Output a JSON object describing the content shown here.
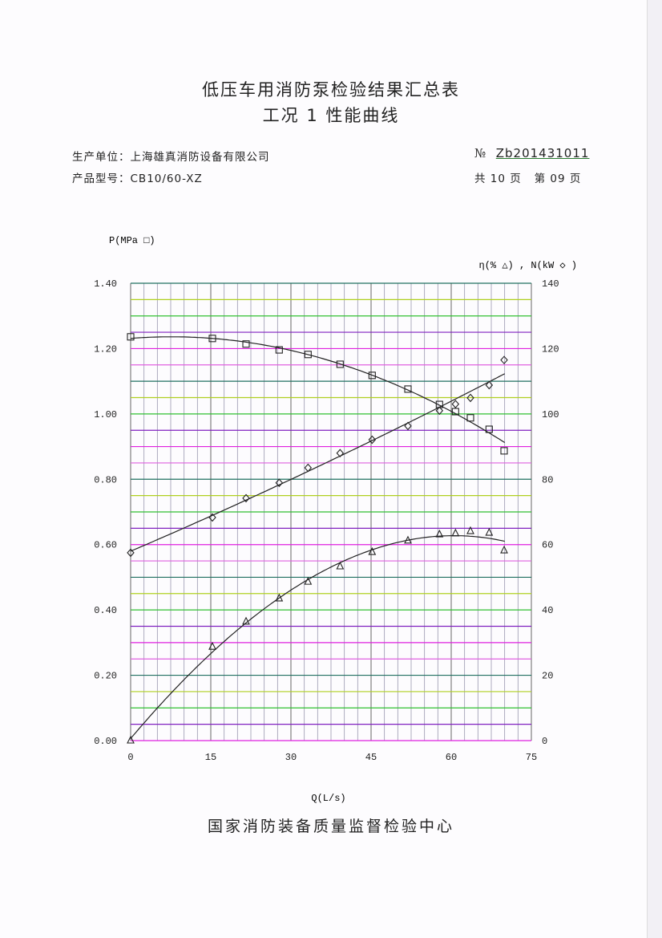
{
  "header": {
    "title": "低压车用消防泵检验结果汇总表",
    "subtitle": "工况 1 性能曲线",
    "manufacturer_label": "生产单位：",
    "manufacturer": "上海雄真消防设备有限公司",
    "model_label": "产品型号：",
    "model": "CB10/60-XZ",
    "no_symbol": "№",
    "doc_no": "Zb201431011",
    "total_pages": "共 10 页",
    "current_page": "第 09 页"
  },
  "footer": {
    "org": "国家消防装备质量监督检验中心"
  },
  "chart_data": {
    "type": "scatter",
    "xlabel": "Q(L/s)",
    "ylabel_left": "P(MPa □)",
    "ylabel_right": "η(% △) , N(kW ◇ )",
    "xlim": [
      0,
      75
    ],
    "ylim_left": [
      0,
      1.4
    ],
    "ylim_right": [
      0,
      140
    ],
    "x_ticks": [
      "0",
      "15",
      "30",
      "45",
      "60",
      "75"
    ],
    "y_ticks_left": [
      "0.00",
      "0.20",
      "0.40",
      "0.60",
      "0.80",
      "1.00",
      "1.20",
      "1.40"
    ],
    "y_ticks_right": [
      "0",
      "20",
      "40",
      "60",
      "80",
      "100",
      "120",
      "140"
    ],
    "grid": true,
    "x": [
      0,
      15.3,
      21.6,
      27.8,
      33.2,
      39.2,
      45.2,
      51.9,
      57.8,
      60.8,
      63.6,
      67.1,
      69.9
    ],
    "series": [
      {
        "marker": "square",
        "axis": "left",
        "color": "#222222",
        "values": [
          1.236,
          1.231,
          1.214,
          1.196,
          1.182,
          1.152,
          1.118,
          1.076,
          1.029,
          1.007,
          0.988,
          0.953,
          0.887
        ]
      },
      {
        "marker": "diamond",
        "axis": "right",
        "color": "#222222",
        "values": [
          57.5,
          68.3,
          74.2,
          78.9,
          83.5,
          88.0,
          92.1,
          96.3,
          101.0,
          103.0,
          104.9,
          108.8,
          116.5
        ]
      },
      {
        "marker": "triangle",
        "axis": "right",
        "color": "#222222",
        "values": [
          0,
          28.7,
          36.4,
          43.5,
          48.6,
          53.3,
          57.7,
          61.2,
          63.1,
          63.4,
          64.1,
          63.6,
          58.2
        ]
      }
    ],
    "grid_colors": [
      "#e020e0",
      "#8020c0",
      "#30c030",
      "#b0d020",
      "#207060",
      "#e060e0"
    ]
  }
}
